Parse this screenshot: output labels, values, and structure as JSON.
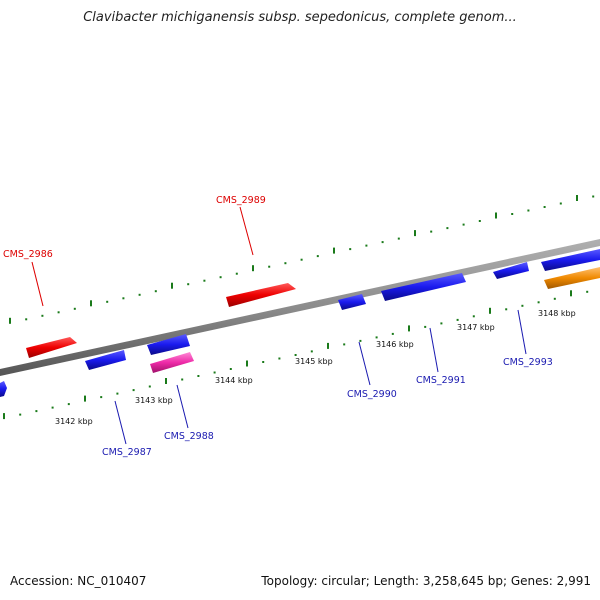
{
  "header": {
    "title": "Clavibacter michiganensis subsp. sepedonicus, complete genom..."
  },
  "footer": {
    "accession": "Accession: NC_010407",
    "summary": "Topology: circular; Length: 3,258,645 bp; Genes: 2,991"
  },
  "colors": {
    "backbone": "#8c8c8c",
    "ticks": "#1a7a1a",
    "forward_gene": "#ee0000",
    "reverse_gene": "#1a1aee",
    "pink_gene": "#ee2aa8",
    "orange_gene": "#f08a00",
    "forward_label": "#dd0000",
    "reverse_label": "#1a1ab0"
  },
  "scale": {
    "unit": "kbp",
    "tick_labels": [
      "3142 kbp",
      "3143 kbp",
      "3144 kbp",
      "3145 kbp",
      "3146 kbp",
      "3147 kbp",
      "3148 kbp"
    ]
  },
  "genes": [
    {
      "label": "CMS_2986",
      "strand": "forward",
      "color": "forward_gene"
    },
    {
      "label": "CMS_2987",
      "strand": "reverse",
      "color": "reverse_gene"
    },
    {
      "label": "CMS_2988",
      "strand": "reverse",
      "color": "pink_gene"
    },
    {
      "label": "CMS_2989",
      "strand": "forward",
      "color": "forward_gene"
    },
    {
      "label": "CMS_2990",
      "strand": "reverse",
      "color": "reverse_gene"
    },
    {
      "label": "CMS_2991",
      "strand": "reverse",
      "color": "reverse_gene"
    },
    {
      "label": "CMS_2993",
      "strand": "reverse",
      "color": "reverse_gene"
    }
  ]
}
